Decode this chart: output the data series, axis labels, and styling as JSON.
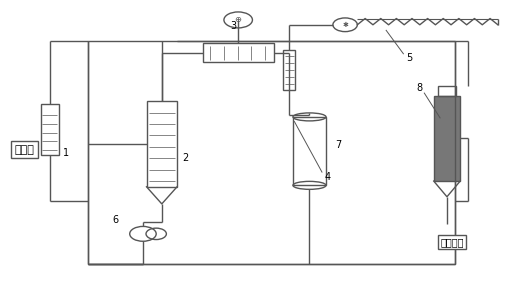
{
  "bg_color": "#ffffff",
  "line_color": "#555555",
  "text_color": "#000000",
  "label_粗酰氯": "粗酰氯",
  "label_焦油装车": "焦油装车"
}
